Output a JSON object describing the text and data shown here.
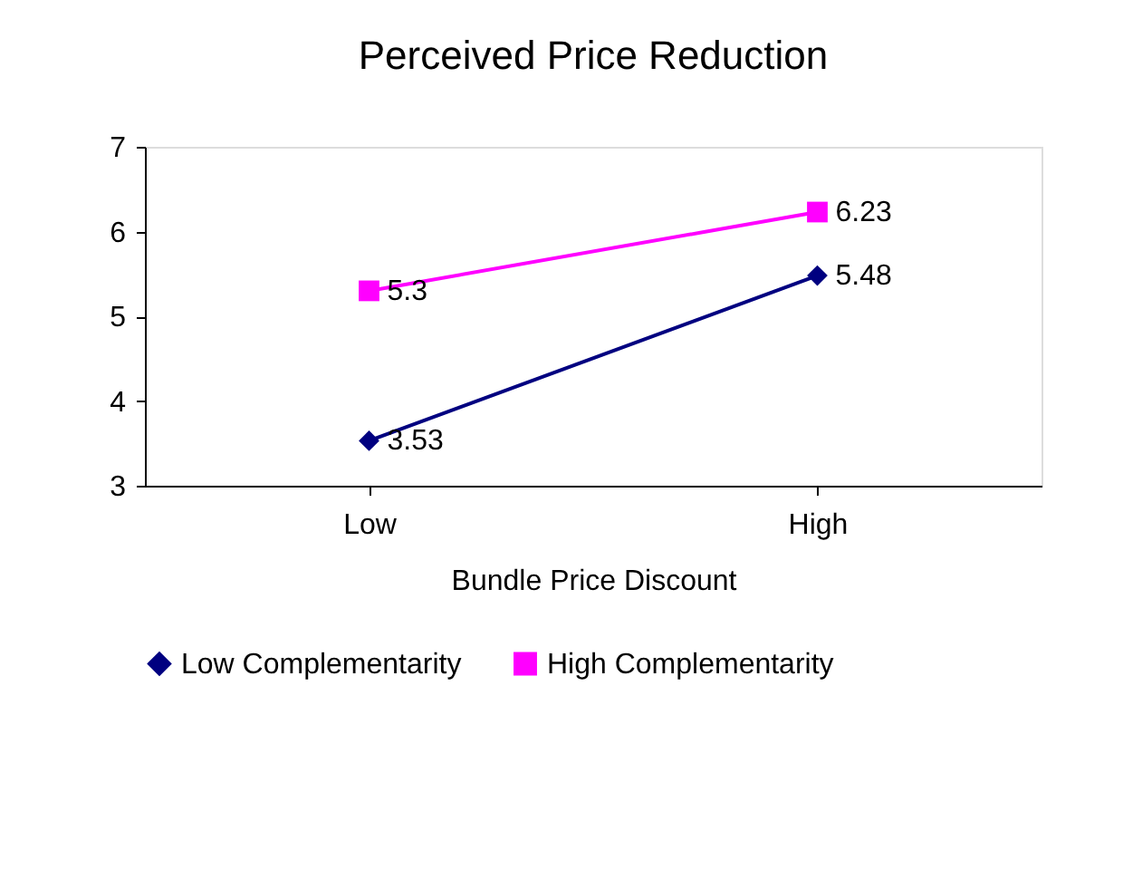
{
  "chart_data": {
    "type": "line",
    "title": "Perceived Price Reduction",
    "xlabel": "Bundle Price Discount",
    "categories": [
      "Low",
      "High"
    ],
    "series": [
      {
        "name": "Low Complementarity",
        "color": "#000080",
        "marker": "diamond",
        "values": [
          3.53,
          5.48
        ]
      },
      {
        "name": "High Complementarity",
        "color": "#ff00ff",
        "marker": "square",
        "values": [
          5.3,
          6.23
        ]
      }
    ],
    "ylim": [
      3,
      7
    ],
    "yticks": [
      3,
      4,
      5,
      6,
      7
    ],
    "grid": false,
    "legend": "bottom",
    "data_labels": true,
    "line_style": "solid"
  }
}
